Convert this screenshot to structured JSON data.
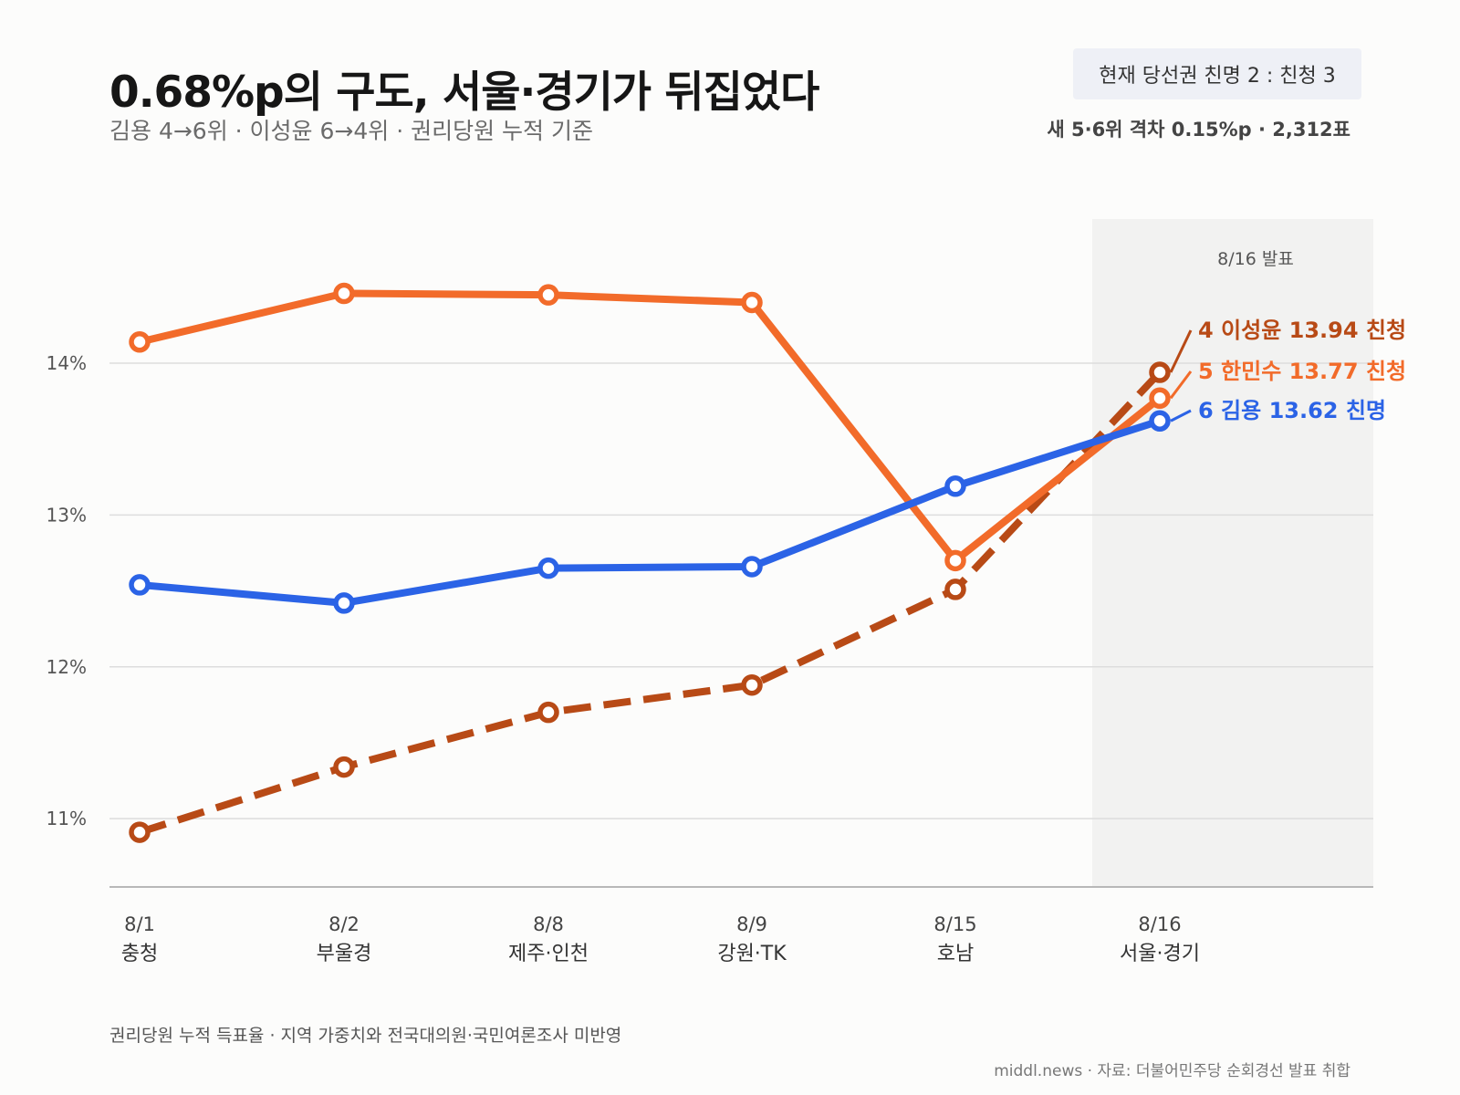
{
  "header": {
    "title": "0.68%p의 구도, 서울·경기가 뒤집었다",
    "subtitle": "김용 4→6위 · 이성윤 6→4위 · 권리당원 누적 기준",
    "badge": "현재 당선권  친명 2 : 친청 3",
    "gap_note": "새 5·6위 격차  0.15%p · 2,312표"
  },
  "footer": {
    "note": "권리당원 누적 득표율 · 지역 가중치와 전국대의원·국민여론조사 미반영",
    "source": "middl.news  ·  자료: 더불어민주당 순회경선 발표 취합"
  },
  "chart_data": {
    "type": "line",
    "x": [
      {
        "date": "8/1",
        "region": "충청"
      },
      {
        "date": "8/2",
        "region": "부울경"
      },
      {
        "date": "8/8",
        "region": "제주·인천"
      },
      {
        "date": "8/9",
        "region": "강원·TK"
      },
      {
        "date": "8/15",
        "region": "호남"
      },
      {
        "date": "8/16",
        "region": "서울·경기"
      }
    ],
    "ylim": [
      10.55,
      14.95
    ],
    "yticks": [
      {
        "value": 11,
        "label": "11%"
      },
      {
        "value": 12,
        "label": "12%"
      },
      {
        "value": 13,
        "label": "13%"
      },
      {
        "value": 14,
        "label": "14%"
      }
    ],
    "grid": true,
    "highlight": {
      "from_index": 5,
      "label": "8/16 발표"
    },
    "series": [
      {
        "name": "한민수",
        "values": [
          14.14,
          14.46,
          14.45,
          14.4,
          12.7,
          13.77
        ],
        "color": "#f26b2a",
        "dashed": false,
        "end_label": {
          "rank": "5",
          "name": "한민수",
          "value": "13.77",
          "faction": "친청"
        }
      },
      {
        "name": "김용",
        "values": [
          12.54,
          12.42,
          12.65,
          12.66,
          13.19,
          13.62
        ],
        "color": "#2b63e6",
        "dashed": false,
        "end_label": {
          "rank": "6",
          "name": "김용",
          "value": "13.62",
          "faction": "친명"
        }
      },
      {
        "name": "이성윤",
        "values": [
          10.91,
          11.34,
          11.7,
          11.88,
          12.51,
          13.94
        ],
        "color": "#b84a16",
        "dashed": true,
        "end_label": {
          "rank": "4",
          "name": "이성윤",
          "value": "13.94",
          "faction": "친청"
        }
      }
    ]
  }
}
